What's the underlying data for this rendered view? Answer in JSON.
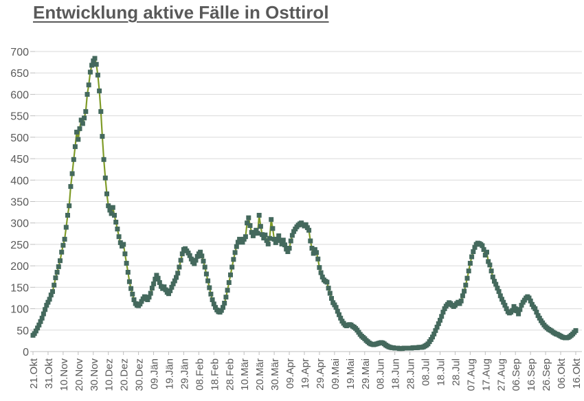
{
  "title": "Entwicklung aktive Fälle in Osttirol",
  "colors": {
    "title_text": "#595959",
    "axis_label": "#595959",
    "gridline": "#d9d9d9",
    "axis_line": "#bfbfbf",
    "series_line": "#7f9b27",
    "marker_fill": "#44695d"
  },
  "chart_data": {
    "type": "line",
    "title": "Entwicklung aktive Fälle in Osttirol",
    "xlabel": "",
    "ylabel": "",
    "ylim": [
      0,
      700
    ],
    "y_ticks": [
      0,
      50,
      100,
      150,
      200,
      250,
      300,
      350,
      400,
      450,
      500,
      550,
      600,
      650,
      700
    ],
    "grid": true,
    "legend_position": "none",
    "marker": "square",
    "days_per_tick": 10,
    "x_tick_labels": [
      "21.Okt",
      "31.Okt",
      "10.Nov",
      "20.Nov",
      "30.Nov",
      "10.Dez",
      "20.Dez",
      "30.Dez",
      "09.Jän",
      "19.Jän",
      "29.Jän",
      "08.Feb",
      "18.Feb",
      "28.Feb",
      "10.Mär",
      "20.Mär",
      "30.Mär",
      "09.Apr",
      "19.Apr",
      "29.Apr",
      "09.Mai",
      "19.Mai",
      "29.Mai",
      "08.Jun",
      "18.Jun",
      "28.Jun",
      "08.Jul",
      "18.Jul",
      "28.Jul",
      "07.Aug",
      "17.Aug",
      "27.Aug",
      "06.Sep",
      "16.Sep",
      "26.Sep",
      "06.Okt",
      "16.Okt"
    ],
    "series_name": "aktive Fälle",
    "values": [
      38,
      42,
      48,
      55,
      62,
      70,
      78,
      88,
      98,
      108,
      115,
      122,
      132,
      140,
      155,
      172,
      185,
      198,
      212,
      232,
      248,
      262,
      290,
      318,
      340,
      385,
      415,
      448,
      478,
      512,
      495,
      520,
      540,
      532,
      545,
      560,
      600,
      622,
      652,
      668,
      678,
      684,
      670,
      645,
      608,
      560,
      502,
      448,
      405,
      368,
      340,
      330,
      322,
      336,
      318,
      302,
      286,
      268,
      254,
      246,
      250,
      228,
      206,
      185,
      163,
      147,
      134,
      121,
      112,
      108,
      107,
      111,
      117,
      123,
      128,
      125,
      121,
      127,
      136,
      148,
      158,
      169,
      178,
      171,
      161,
      152,
      147,
      151,
      144,
      138,
      135,
      142,
      150,
      158,
      165,
      173,
      183,
      197,
      213,
      228,
      238,
      240,
      235,
      230,
      224,
      216,
      209,
      205,
      213,
      222,
      228,
      232,
      223,
      211,
      197,
      181,
      165,
      149,
      134,
      121,
      111,
      103,
      97,
      93,
      92,
      96,
      103,
      113,
      127,
      143,
      161,
      179,
      197,
      215,
      231,
      245,
      255,
      262,
      259,
      255,
      262,
      268,
      300,
      312,
      294,
      278,
      270,
      276,
      283,
      276,
      318,
      292,
      273,
      265,
      272,
      259,
      251,
      264,
      308,
      287,
      262,
      254,
      262,
      270,
      259,
      251,
      260,
      249,
      239,
      233,
      241,
      258,
      271,
      280,
      286,
      291,
      295,
      298,
      300,
      296,
      293,
      296,
      289,
      283,
      258,
      241,
      229,
      238,
      231,
      216,
      196,
      184,
      174,
      167,
      164,
      162,
      148,
      136,
      124,
      114,
      109,
      103,
      94,
      86,
      78,
      71,
      66,
      62,
      60,
      62,
      63,
      62,
      59,
      57,
      54,
      50,
      45,
      40,
      36,
      33,
      30,
      26,
      23,
      20,
      18,
      17,
      16,
      17,
      18,
      19,
      20,
      21,
      20,
      18,
      15,
      13,
      11,
      10,
      9,
      9,
      8,
      8,
      8,
      7,
      7,
      7,
      8,
      8,
      8,
      8,
      8,
      8,
      9,
      9,
      9,
      9,
      10,
      10,
      10,
      11,
      13,
      15,
      18,
      23,
      28,
      34,
      41,
      49,
      57,
      65,
      73,
      82,
      92,
      100,
      106,
      110,
      114,
      112,
      108,
      105,
      108,
      112,
      115,
      112,
      118,
      130,
      141,
      155,
      171,
      188,
      206,
      221,
      233,
      243,
      250,
      253,
      252,
      250,
      247,
      238,
      225,
      232,
      210,
      202,
      188,
      174,
      164,
      157,
      148,
      140,
      130,
      122,
      115,
      108,
      100,
      93,
      90,
      92,
      96,
      105,
      100,
      95,
      88,
      98,
      108,
      115,
      120,
      125,
      128,
      125,
      118,
      110,
      104,
      100,
      92,
      84,
      78,
      72,
      67,
      62,
      58,
      55,
      52,
      50,
      48,
      45,
      43,
      41,
      40,
      38,
      36,
      34,
      33,
      32,
      32,
      33,
      35,
      38,
      41,
      45,
      49
    ]
  }
}
